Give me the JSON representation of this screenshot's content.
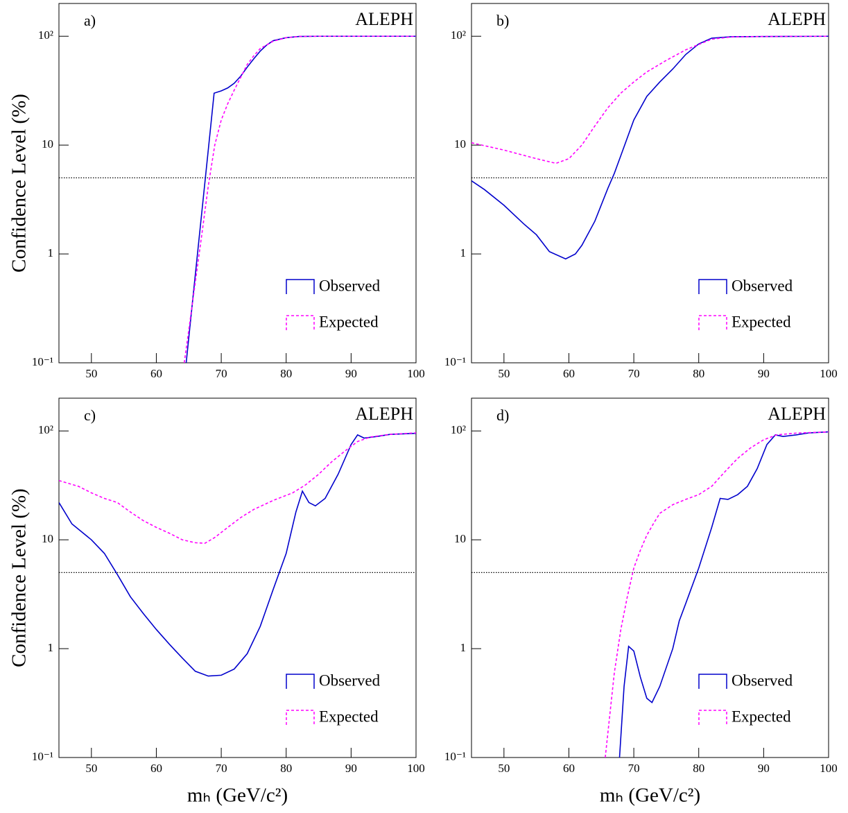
{
  "chart_data": [
    {
      "type": "line",
      "label": "a)",
      "experiment": "ALEPH",
      "y_label": "Confidence Level (%)",
      "xlim": [
        45,
        100
      ],
      "xticks": [
        50,
        60,
        70,
        80,
        90,
        100
      ],
      "ylim": [
        0.1,
        200
      ],
      "log_y": true,
      "yticks": [
        {
          "value": 0.1,
          "label": "10⁻¹"
        },
        1,
        10,
        {
          "value": 100,
          "label": "10²"
        }
      ],
      "reference_line": 5,
      "series": [
        {
          "name": "Observed",
          "color": "#0000cc",
          "style": "solid",
          "x": [
            64.6,
            65,
            66,
            67,
            68,
            68.9,
            70,
            71,
            72,
            73,
            74,
            75,
            76,
            77,
            78,
            80,
            82,
            85,
            90,
            100
          ],
          "values": [
            0.1,
            0.17,
            0.64,
            2.4,
            9.0,
            30,
            31.5,
            33.5,
            37,
            43,
            52,
            62,
            73,
            83,
            91,
            97,
            99.5,
            100,
            100,
            100
          ]
        },
        {
          "name": "Expected",
          "color": "#ff00ff",
          "style": "dashed",
          "x": [
            64.3,
            65,
            66,
            67,
            68,
            69,
            70,
            71,
            72,
            73,
            74,
            75,
            76,
            78,
            80,
            82,
            85,
            100
          ],
          "values": [
            0.1,
            0.2,
            0.55,
            1.5,
            4.2,
            10,
            17,
            24,
            32,
            42,
            55,
            66,
            77,
            90,
            97,
            99.5,
            100,
            100
          ]
        }
      ]
    },
    {
      "type": "line",
      "label": "b)",
      "experiment": "ALEPH",
      "xlim": [
        45,
        100
      ],
      "xticks": [
        50,
        60,
        70,
        80,
        90,
        100
      ],
      "ylim": [
        0.1,
        200
      ],
      "log_y": true,
      "yticks": [
        {
          "value": 0.1,
          "label": "10⁻¹"
        },
        1,
        10,
        {
          "value": 100,
          "label": "10²"
        }
      ],
      "reference_line": 5,
      "series": [
        {
          "name": "Observed",
          "color": "#0000cc",
          "style": "solid",
          "x": [
            45,
            47,
            50,
            53,
            55,
            57,
            59.5,
            61,
            62,
            64,
            66,
            67,
            68,
            70,
            72,
            74,
            76,
            78,
            80,
            82,
            85,
            100
          ],
          "values": [
            4.7,
            3.9,
            2.8,
            1.9,
            1.5,
            1.05,
            0.9,
            1.0,
            1.2,
            2.0,
            4.0,
            5.5,
            8,
            17,
            28,
            38,
            50,
            68,
            85,
            96,
            99,
            100
          ]
        },
        {
          "name": "Expected",
          "color": "#ff00ff",
          "style": "dashed",
          "x": [
            45,
            50,
            55,
            58,
            60,
            62,
            64,
            66,
            68,
            70,
            72,
            75,
            78,
            80,
            82,
            85,
            90,
            100
          ],
          "values": [
            10.5,
            9,
            7.5,
            6.8,
            7.5,
            10,
            15,
            22,
            30,
            38,
            47,
            60,
            75,
            84,
            94,
            98.5,
            99.5,
            100
          ]
        }
      ]
    },
    {
      "type": "line",
      "label": "c)",
      "experiment": "ALEPH",
      "y_label": "Confidence Level (%)",
      "x_label": "mₕ (GeV/c²)",
      "xlim": [
        45,
        100
      ],
      "xticks": [
        50,
        60,
        70,
        80,
        90,
        100
      ],
      "ylim": [
        0.1,
        200
      ],
      "log_y": true,
      "yticks": [
        {
          "value": 0.1,
          "label": "10⁻¹"
        },
        1,
        10,
        {
          "value": 100,
          "label": "10²"
        }
      ],
      "reference_line": 5,
      "series": [
        {
          "name": "Observed",
          "color": "#0000cc",
          "style": "solid",
          "x": [
            45,
            47,
            50,
            52,
            54,
            56,
            58,
            60,
            62,
            64,
            66,
            68,
            70,
            72,
            74,
            76,
            78,
            80,
            81.5,
            82.5,
            83.5,
            84.5,
            86,
            88,
            90,
            91,
            92,
            94,
            96,
            100
          ],
          "values": [
            22,
            14,
            10,
            7.5,
            4.8,
            3,
            2.1,
            1.5,
            1.1,
            0.82,
            0.62,
            0.56,
            0.57,
            0.65,
            0.9,
            1.6,
            3.5,
            7.5,
            18,
            28,
            22,
            20.5,
            24,
            40,
            75,
            92,
            86,
            89,
            93,
            95
          ]
        },
        {
          "name": "Expected",
          "color": "#ff00ff",
          "style": "dashed",
          "x": [
            45,
            48,
            50,
            52,
            54,
            56,
            58,
            60,
            62,
            64,
            66,
            67.5,
            69,
            71,
            73,
            75,
            78,
            81,
            83,
            85,
            87,
            89,
            91,
            93,
            96,
            100
          ],
          "values": [
            35,
            31,
            27,
            24,
            22,
            18,
            15,
            13,
            11.5,
            10,
            9.4,
            9.3,
            10.5,
            13,
            16,
            19,
            23,
            27,
            32,
            40,
            52,
            65,
            80,
            88,
            93,
            96
          ]
        }
      ]
    },
    {
      "type": "line",
      "label": "d)",
      "experiment": "ALEPH",
      "x_label": "mₕ (GeV/c²)",
      "xlim": [
        45,
        100
      ],
      "xticks": [
        50,
        60,
        70,
        80,
        90,
        100
      ],
      "ylim": [
        0.1,
        200
      ],
      "log_y": true,
      "yticks": [
        {
          "value": 0.1,
          "label": "10⁻¹"
        },
        1,
        10,
        {
          "value": 100,
          "label": "10²"
        }
      ],
      "reference_line": 5,
      "series": [
        {
          "name": "Observed",
          "color": "#0000cc",
          "style": "solid",
          "x": [
            67.8,
            68.5,
            69.2,
            70,
            71,
            72,
            72.8,
            74,
            76,
            77,
            78,
            80,
            82,
            83.3,
            84.5,
            86,
            87.5,
            89,
            90.5,
            91.8,
            93,
            95,
            97,
            100
          ],
          "values": [
            0.1,
            0.45,
            1.05,
            0.95,
            0.55,
            0.35,
            0.32,
            0.45,
            1.0,
            1.8,
            2.6,
            5.5,
            13,
            24,
            23.5,
            26,
            31,
            45,
            75,
            92,
            89,
            92,
            96,
            98
          ]
        },
        {
          "name": "Expected",
          "color": "#ff00ff",
          "style": "dashed",
          "x": [
            65.6,
            67,
            68,
            69,
            70,
            71,
            72,
            73,
            74,
            76,
            78,
            80,
            82,
            84,
            86,
            88,
            90,
            92,
            95,
            100
          ],
          "values": [
            0.1,
            0.6,
            1.5,
            3,
            5.5,
            8,
            11,
            14,
            17.5,
            21,
            23.5,
            26,
            31,
            42,
            56,
            70,
            83,
            92,
            95.5,
            98
          ]
        }
      ]
    }
  ]
}
